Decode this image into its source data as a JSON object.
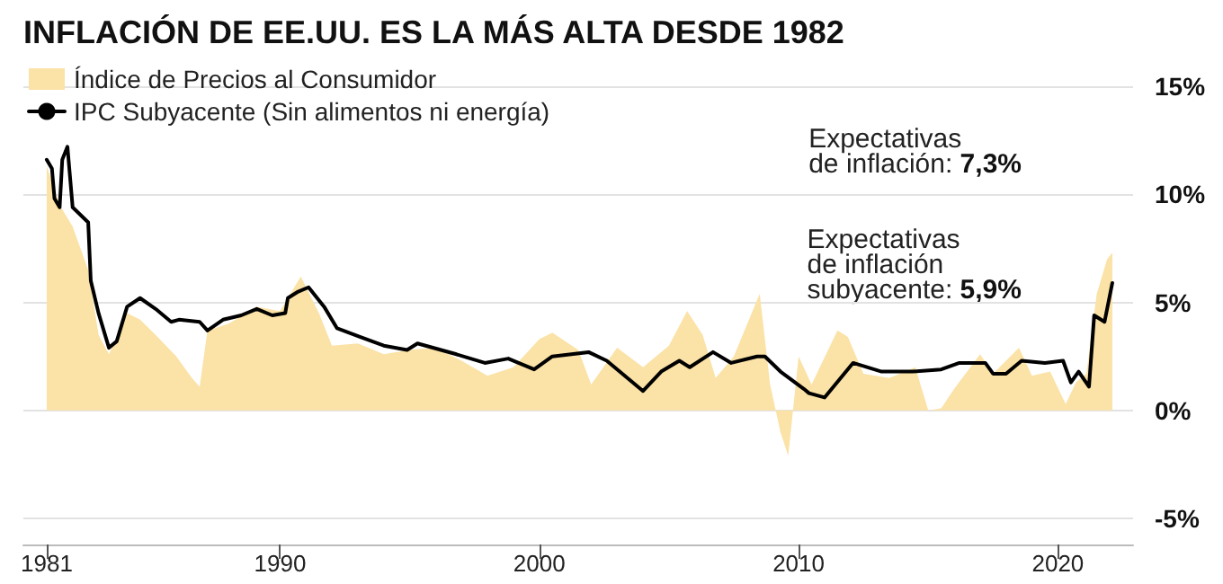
{
  "chart_data": {
    "type": "area",
    "title": "INFLACIÓN DE EE.UU. ES LA MÁS ALTA DESDE 1982",
    "series": [
      {
        "name": "Índice de Precios al Consumidor",
        "color": "#fbe2a6",
        "x": [
          1981.0,
          1981.5,
          1982.0,
          1982.6,
          1983.0,
          1983.4,
          1984.1,
          1984.6,
          1985.2,
          1986.0,
          1986.6,
          1986.9,
          1987.2,
          1988.0,
          1989.1,
          1990.0,
          1990.8,
          1991.5,
          1992.0,
          1993.0,
          1994.0,
          1995.0,
          1996.0,
          1997.0,
          1998.0,
          1999.0,
          2000.0,
          2000.5,
          2001.5,
          2002.0,
          2003.0,
          2004.0,
          2005.0,
          2005.7,
          2006.3,
          2006.8,
          2007.5,
          2008.5,
          2008.9,
          2009.3,
          2009.6,
          2010.0,
          2010.5,
          2011.5,
          2011.9,
          2012.5,
          2013.5,
          2014.5,
          2015.0,
          2015.5,
          2016.0,
          2017.0,
          2017.5,
          2018.5,
          2019.0,
          2019.7,
          2020.3,
          2020.7,
          2021.1,
          2021.5,
          2021.9,
          2022.1
        ],
        "values": [
          11.3,
          9.5,
          8.5,
          6.5,
          3.5,
          2.6,
          4.5,
          4.2,
          3.5,
          2.5,
          1.5,
          1.1,
          3.7,
          4.0,
          4.8,
          4.6,
          6.2,
          4.5,
          3.0,
          3.1,
          2.6,
          2.8,
          2.9,
          2.3,
          1.6,
          2.0,
          3.3,
          3.6,
          2.8,
          1.2,
          2.9,
          2.0,
          3.0,
          4.6,
          3.5,
          1.5,
          2.5,
          5.4,
          1.2,
          -1.0,
          -2.1,
          2.5,
          1.2,
          3.7,
          3.4,
          1.7,
          1.5,
          2.0,
          0.0,
          0.1,
          1.0,
          2.6,
          1.7,
          2.9,
          1.6,
          1.8,
          0.3,
          1.3,
          1.7,
          5.4,
          7.0,
          7.3
        ]
      },
      {
        "name": "IPC Subyacente (Sin alimentos ni energía)",
        "type": "line",
        "color": "#000000",
        "x": [
          1981.0,
          1981.2,
          1981.3,
          1981.5,
          1981.6,
          1981.8,
          1982.0,
          1982.6,
          1982.7,
          1983.0,
          1983.4,
          1983.7,
          1984.1,
          1984.6,
          1985.2,
          1985.8,
          1986.1,
          1986.9,
          1987.2,
          1987.8,
          1988.5,
          1989.1,
          1989.7,
          1990.2,
          1990.3,
          1990.7,
          1991.1,
          1991.7,
          1992.2,
          1993.1,
          1994.0,
          1994.9,
          1995.3,
          1996.8,
          1997.9,
          1998.8,
          1999.8,
          2000.5,
          2001.9,
          2002.6,
          2004.0,
          2004.7,
          2005.4,
          2005.8,
          2006.7,
          2007.4,
          2008.4,
          2008.7,
          2009.3,
          2010.2,
          2010.4,
          2011.0,
          2012.1,
          2013.2,
          2014.4,
          2015.5,
          2016.2,
          2017.2,
          2017.5,
          2018.0,
          2018.6,
          2019.5,
          2020.2,
          2020.5,
          2020.8,
          2021.2,
          2021.4,
          2021.8,
          2022.1
        ],
        "values": [
          11.6,
          11.2,
          9.8,
          9.4,
          11.6,
          12.2,
          9.4,
          8.7,
          6.0,
          4.5,
          2.9,
          3.2,
          4.8,
          5.2,
          4.7,
          4.1,
          4.2,
          4.1,
          3.7,
          4.2,
          4.4,
          4.7,
          4.4,
          4.5,
          5.2,
          5.5,
          5.7,
          4.8,
          3.8,
          3.4,
          3.0,
          2.8,
          3.1,
          2.6,
          2.2,
          2.4,
          1.9,
          2.5,
          2.7,
          2.3,
          0.9,
          1.8,
          2.3,
          2.0,
          2.7,
          2.2,
          2.5,
          2.5,
          1.8,
          1.0,
          0.8,
          0.6,
          2.2,
          1.8,
          1.8,
          1.9,
          2.2,
          2.2,
          1.7,
          1.7,
          2.3,
          2.2,
          2.3,
          1.3,
          1.8,
          1.1,
          4.4,
          4.1,
          5.9
        ]
      }
    ],
    "annotations": [
      "Expectativas de inflación: 7,3%",
      "Expectativas de inflación subyacente: 5,9%"
    ],
    "xlim": [
      1980.1,
      2022.9
    ],
    "xticks": [
      1981,
      1990,
      2000,
      2010,
      2020
    ],
    "ylim": [
      -6.2,
      15
    ],
    "yticks": [
      {
        "value": -5,
        "label": "-5%"
      },
      {
        "value": 0,
        "label": "0%"
      },
      {
        "value": 5,
        "label": "5%"
      },
      {
        "value": 10,
        "label": "10%"
      },
      {
        "value": 15,
        "label": "15%"
      }
    ],
    "grid": "y",
    "legend": "top left",
    "line_style": "solid",
    "marker": "none"
  }
}
